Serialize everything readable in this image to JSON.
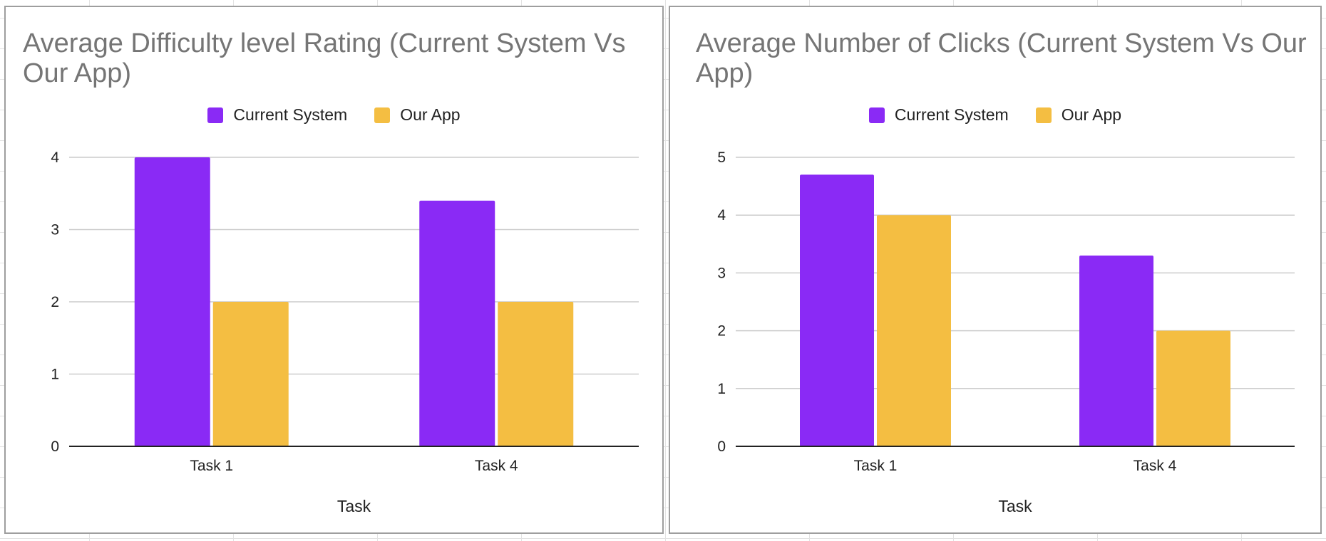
{
  "colors": {
    "current_system": "#8a2af5",
    "our_app": "#f4be42"
  },
  "chart_data": [
    {
      "type": "bar",
      "title": "Average Difficulty level Rating (Current System Vs Our App)",
      "xlabel": "Task",
      "ylabel": "",
      "categories": [
        "Task 1",
        "Task 4"
      ],
      "series": [
        {
          "name": "Current System",
          "values": [
            4.0,
            3.4
          ]
        },
        {
          "name": "Our App",
          "values": [
            2.0,
            2.0
          ]
        }
      ],
      "ylim": [
        0,
        4
      ],
      "yticks": [
        "0",
        "1",
        "2",
        "3",
        "4"
      ],
      "grid": true,
      "legend": "top"
    },
    {
      "type": "bar",
      "title": "Average Number of Clicks (Current System Vs Our App)",
      "xlabel": "Task",
      "ylabel": "",
      "categories": [
        "Task 1",
        "Task 4"
      ],
      "series": [
        {
          "name": "Current System",
          "values": [
            4.7,
            3.3
          ]
        },
        {
          "name": "Our App",
          "values": [
            4.0,
            2.0
          ]
        }
      ],
      "ylim": [
        0,
        5
      ],
      "yticks": [
        "0",
        "1",
        "2",
        "3",
        "4",
        "5"
      ],
      "grid": true,
      "legend": "top"
    }
  ]
}
